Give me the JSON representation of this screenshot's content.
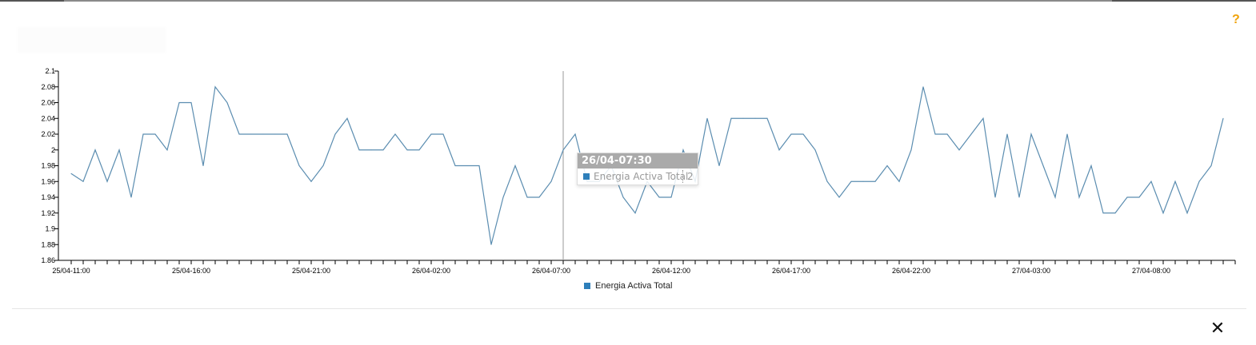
{
  "header": {
    "help_icon": "?",
    "close_icon": "✕"
  },
  "colors": {
    "line": "#5b8db0",
    "legend_swatch": "#2e7fba",
    "help": "#f0a30a",
    "tooltip_header": "#aaaaaa"
  },
  "chart_data": {
    "type": "line",
    "ylim": [
      1.86,
      2.1
    ],
    "y_ticks": [
      "2.1",
      "2.08",
      "2.06",
      "2.04",
      "2.02",
      "2",
      "1.98",
      "1.96",
      "1.94",
      "1.92",
      "1.9",
      "1.88",
      "1.86"
    ],
    "y_tick_values": [
      2.1,
      2.08,
      2.06,
      2.04,
      2.02,
      2.0,
      1.98,
      1.96,
      1.94,
      1.92,
      1.9,
      1.88,
      1.86
    ],
    "x_tick_labels": [
      {
        "index": 0,
        "label": "25/04-11:00"
      },
      {
        "index": 10,
        "label": "25/04-16:00"
      },
      {
        "index": 20,
        "label": "25/04-21:00"
      },
      {
        "index": 30,
        "label": "26/04-02:00"
      },
      {
        "index": 40,
        "label": "26/04-07:00"
      },
      {
        "index": 50,
        "label": "26/04-12:00"
      },
      {
        "index": 60,
        "label": "26/04-17:00"
      },
      {
        "index": 70,
        "label": "26/04-22:00"
      },
      {
        "index": 80,
        "label": "27/04-03:00"
      },
      {
        "index": 90,
        "label": "27/04-08:00"
      }
    ],
    "x": [
      "25/04-11:00",
      "25/04-11:30",
      "25/04-12:00",
      "25/04-12:30",
      "25/04-13:00",
      "25/04-13:30",
      "25/04-14:00",
      "25/04-14:30",
      "25/04-15:00",
      "25/04-15:30",
      "25/04-16:00",
      "25/04-16:30",
      "25/04-17:00",
      "25/04-17:30",
      "25/04-18:00",
      "25/04-18:30",
      "25/04-19:00",
      "25/04-19:30",
      "25/04-20:00",
      "25/04-20:30",
      "25/04-21:00",
      "25/04-21:30",
      "25/04-22:00",
      "25/04-22:30",
      "25/04-23:00",
      "25/04-23:30",
      "26/04-00:00",
      "26/04-00:30",
      "26/04-01:00",
      "26/04-01:30",
      "26/04-02:00",
      "26/04-02:30",
      "26/04-03:00",
      "26/04-03:30",
      "26/04-04:00",
      "26/04-04:30",
      "26/04-05:00",
      "26/04-05:30",
      "26/04-06:00",
      "26/04-06:30",
      "26/04-07:00",
      "26/04-07:30",
      "26/04-08:00",
      "26/04-08:30",
      "26/04-09:00",
      "26/04-09:30",
      "26/04-10:00",
      "26/04-10:30",
      "26/04-11:00",
      "26/04-11:30",
      "26/04-12:00",
      "26/04-12:30",
      "26/04-13:00",
      "26/04-13:30",
      "26/04-14:00",
      "26/04-14:30",
      "26/04-15:00",
      "26/04-15:30",
      "26/04-16:00",
      "26/04-16:30",
      "26/04-17:00",
      "26/04-17:30",
      "26/04-18:00",
      "26/04-18:30",
      "26/04-19:00",
      "26/04-19:30",
      "26/04-20:00",
      "26/04-20:30",
      "26/04-21:00",
      "26/04-21:30",
      "26/04-22:00",
      "26/04-22:30",
      "26/04-23:00",
      "26/04-23:30",
      "27/04-00:00",
      "27/04-00:30",
      "27/04-01:00",
      "27/04-01:30",
      "27/04-02:00",
      "27/04-02:30",
      "27/04-03:00",
      "27/04-03:30",
      "27/04-04:00",
      "27/04-04:30",
      "27/04-05:00",
      "27/04-05:30",
      "27/04-06:00",
      "27/04-06:30",
      "27/04-07:00",
      "27/04-07:30",
      "27/04-08:00",
      "27/04-08:30",
      "27/04-09:00",
      "27/04-09:30",
      "27/04-10:00",
      "27/04-10:30",
      "27/04-11:00"
    ],
    "series": [
      {
        "name": "Energia Activa Total",
        "values": [
          1.97,
          1.96,
          2.0,
          1.96,
          2.0,
          1.94,
          2.02,
          2.02,
          2.0,
          2.06,
          2.06,
          1.98,
          2.08,
          2.06,
          2.02,
          2.02,
          2.02,
          2.02,
          2.02,
          1.98,
          1.96,
          1.98,
          2.02,
          2.04,
          2.0,
          2.0,
          2.0,
          2.02,
          2.0,
          2.0,
          2.02,
          2.02,
          1.98,
          1.98,
          1.98,
          1.88,
          1.94,
          1.98,
          1.94,
          1.94,
          1.96,
          2.0,
          2.02,
          1.96,
          1.96,
          1.98,
          1.94,
          1.92,
          1.96,
          1.94,
          1.94,
          2.0,
          1.96,
          2.04,
          1.98,
          2.04,
          2.04,
          2.04,
          2.04,
          2.0,
          2.02,
          2.02,
          2.0,
          1.96,
          1.94,
          1.96,
          1.96,
          1.96,
          1.98,
          1.96,
          2.0,
          2.08,
          2.02,
          2.02,
          2.0,
          2.02,
          2.04,
          1.94,
          2.02,
          1.94,
          2.02,
          1.98,
          1.94,
          2.02,
          1.94,
          1.98,
          1.92,
          1.92,
          1.94,
          1.94,
          1.96,
          1.92,
          1.96,
          1.92,
          1.96,
          1.98,
          2.04
        ]
      }
    ],
    "legend": {
      "label": "Energia Activa Total",
      "placement": "bottom-center"
    },
    "tooltip": {
      "title": "26/04-07:30",
      "series": "Energia Activa Total",
      "value": "2",
      "hover_index": 41
    },
    "grid": false
  }
}
